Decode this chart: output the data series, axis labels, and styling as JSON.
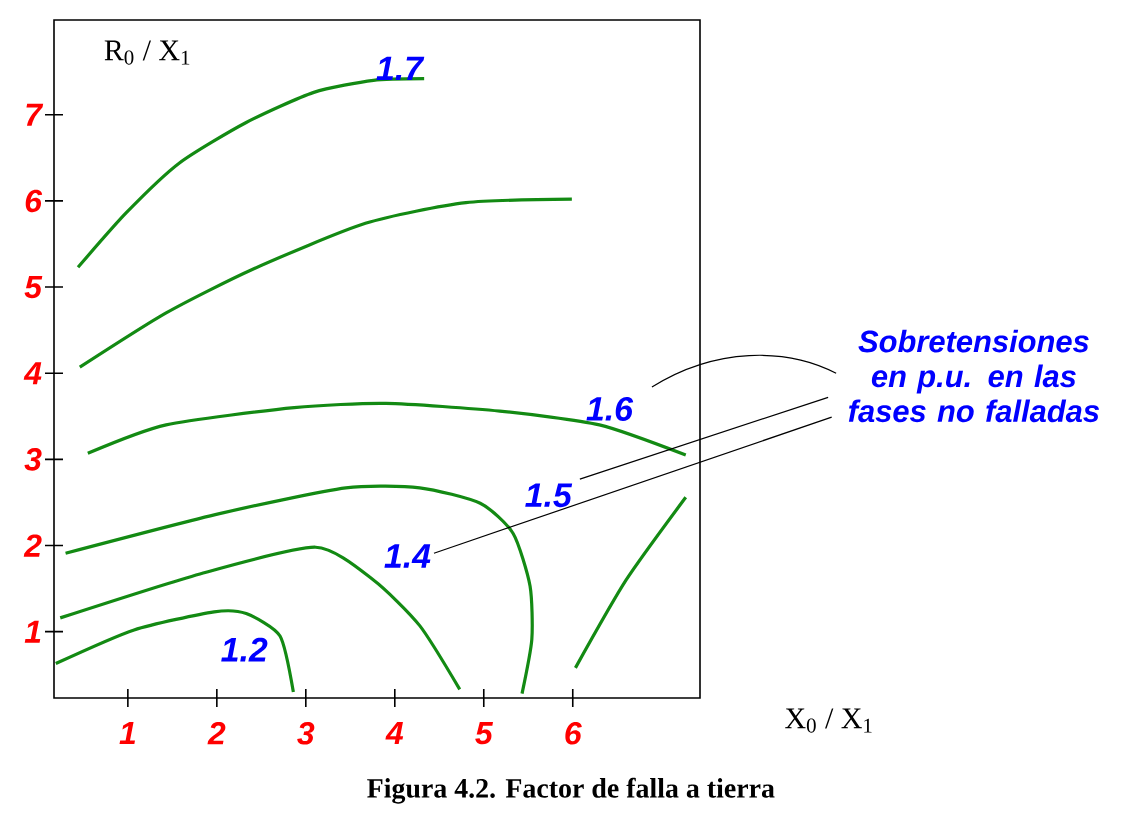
{
  "chart_data": {
    "type": "line",
    "title": "Figura 4.2. Factor de falla a tierra",
    "xlabel": "X$_{0}$ / X$_{1}$",
    "ylabel": "R$_{0}$ / X$_{1}$",
    "xlim": [
      0.17,
      7.43
    ],
    "ylim": [
      0.23,
      8.1
    ],
    "xticks": [
      1,
      2,
      3,
      4,
      5,
      6
    ],
    "yticks": [
      1,
      2,
      3,
      4,
      5,
      6,
      7
    ],
    "series": [
      {
        "name": "1.7",
        "color": "#138a13",
        "x": [
          0.44,
          0.98,
          1.58,
          2.33,
          3.09,
          3.76,
          4.33
        ],
        "values": [
          5.23,
          5.86,
          6.44,
          6.91,
          7.26,
          7.4,
          7.42
        ]
      },
      {
        "color": "#138a13",
        "x": [
          0.46,
          1.43,
          2.41,
          3.67,
          4.8,
          5.99
        ],
        "values": [
          4.07,
          4.7,
          5.21,
          5.74,
          5.98,
          6.02
        ]
      },
      {
        "name": "1.6",
        "color": "#138a13",
        "x": [
          0.55,
          1.43,
          2.87,
          3.9,
          5.18,
          6.3,
          7.27
        ],
        "values": [
          3.07,
          3.4,
          3.6,
          3.65,
          3.56,
          3.4,
          3.05
        ]
      },
      {
        "name": "1.5",
        "color": "#138a13",
        "x": [
          0.3,
          2.03,
          3.45,
          4.28,
          4.96,
          5.33,
          5.52,
          5.54,
          5.43
        ],
        "values": [
          1.91,
          2.37,
          2.67,
          2.67,
          2.49,
          2.14,
          1.53,
          0.91,
          0.28
        ]
      },
      {
        "name": "1.4",
        "color": "#138a13",
        "x": [
          0.24,
          1.81,
          3.11,
          3.76,
          4.28,
          4.73
        ],
        "values": [
          1.16,
          1.67,
          1.98,
          1.6,
          1.07,
          0.33
        ]
      },
      {
        "name": "1.2",
        "color": "#138a13",
        "x": [
          0.19,
          1.07,
          1.97,
          2.33,
          2.71,
          2.86
        ],
        "values": [
          0.63,
          1.02,
          1.23,
          1.21,
          0.95,
          0.3
        ]
      },
      {
        "color": "#138a13",
        "x": [
          6.03,
          6.6,
          7.27
        ],
        "values": [
          0.58,
          1.6,
          2.56
        ]
      }
    ],
    "annotations": [
      "**Sobretensiones en p.u. en las fases no falladas**"
    ]
  }
}
